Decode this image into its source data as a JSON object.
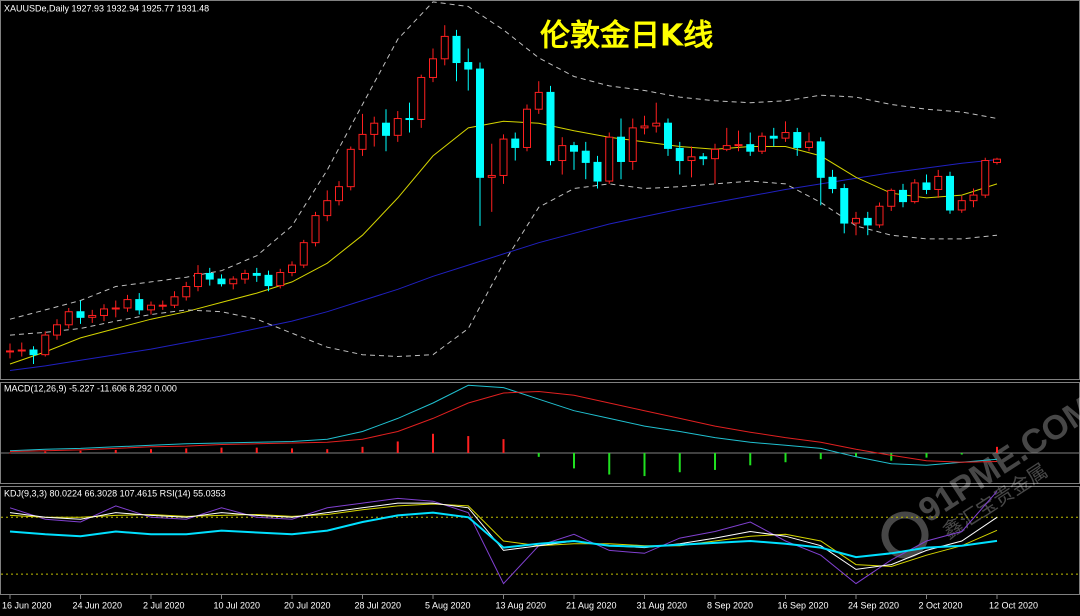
{
  "chart_data": {
    "type": "candlestick",
    "title": "伦敦金日K线",
    "header": "XAUUSDe,Daily  1927.93 1932.94 1925.77 1931.48",
    "up_color": "#ff2020",
    "down_color": "#00ffff",
    "ylim": [
      1697,
      2102
    ],
    "categories": [
      "16 Jun 2020",
      null,
      null,
      null,
      null,
      null,
      "24 Jun 2020",
      null,
      null,
      null,
      null,
      null,
      "2 Jul 2020",
      null,
      null,
      null,
      null,
      null,
      "10 Jul 2020",
      null,
      null,
      null,
      null,
      null,
      "20 Jul 2020",
      null,
      null,
      null,
      null,
      null,
      "28 Jul 2020",
      null,
      null,
      null,
      null,
      null,
      "5 Aug 2020",
      null,
      null,
      null,
      null,
      null,
      "13 Aug 2020",
      null,
      null,
      null,
      null,
      null,
      "21 Aug 2020",
      null,
      null,
      null,
      null,
      null,
      "31 Aug 2020",
      null,
      null,
      null,
      null,
      null,
      "8 Sep 2020",
      null,
      null,
      null,
      null,
      null,
      "16 Sep 2020",
      null,
      null,
      null,
      null,
      null,
      "24 Sep 2020",
      null,
      null,
      null,
      null,
      null,
      "2 Oct 2020",
      null,
      null,
      null,
      null,
      null,
      "12 Oct 2020"
    ],
    "candles": [
      [
        1725,
        1734,
        1718,
        1726
      ],
      [
        1726,
        1735,
        1720,
        1727
      ],
      [
        1727,
        1731,
        1712,
        1722
      ],
      [
        1722,
        1747,
        1720,
        1743
      ],
      [
        1743,
        1760,
        1738,
        1754
      ],
      [
        1754,
        1772,
        1750,
        1768
      ],
      [
        1768,
        1780,
        1755,
        1762
      ],
      [
        1762,
        1770,
        1756,
        1764
      ],
      [
        1764,
        1776,
        1758,
        1771
      ],
      [
        1771,
        1780,
        1762,
        1772
      ],
      [
        1772,
        1786,
        1768,
        1781
      ],
      [
        1781,
        1788,
        1765,
        1770
      ],
      [
        1770,
        1779,
        1765,
        1775
      ],
      [
        1775,
        1780,
        1770,
        1775
      ],
      [
        1775,
        1790,
        1772,
        1784
      ],
      [
        1784,
        1800,
        1780,
        1795
      ],
      [
        1795,
        1818,
        1790,
        1809
      ],
      [
        1809,
        1815,
        1796,
        1803
      ],
      [
        1803,
        1808,
        1795,
        1798
      ],
      [
        1798,
        1806,
        1792,
        1803
      ],
      [
        1803,
        1813,
        1798,
        1809
      ],
      [
        1809,
        1815,
        1800,
        1807
      ],
      [
        1807,
        1812,
        1790,
        1796
      ],
      [
        1796,
        1814,
        1793,
        1810
      ],
      [
        1810,
        1822,
        1806,
        1818
      ],
      [
        1818,
        1845,
        1815,
        1842
      ],
      [
        1842,
        1875,
        1838,
        1871
      ],
      [
        1871,
        1898,
        1865,
        1887
      ],
      [
        1887,
        1908,
        1882,
        1902
      ],
      [
        1902,
        1945,
        1898,
        1942
      ],
      [
        1942,
        1980,
        1935,
        1958
      ],
      [
        1958,
        1977,
        1945,
        1970
      ],
      [
        1970,
        1985,
        1940,
        1957
      ],
      [
        1957,
        1983,
        1950,
        1975
      ],
      [
        1975,
        1992,
        1960,
        1974
      ],
      [
        1974,
        2022,
        1965,
        2019
      ],
      [
        2019,
        2050,
        2014,
        2039
      ],
      [
        2039,
        2075,
        2032,
        2063
      ],
      [
        2063,
        2070,
        2015,
        2035
      ],
      [
        2035,
        2050,
        2005,
        2028
      ],
      [
        2028,
        2035,
        1860,
        1912
      ],
      [
        1912,
        1948,
        1875,
        1914
      ],
      [
        1914,
        1958,
        1905,
        1953
      ],
      [
        1953,
        1960,
        1930,
        1944
      ],
      [
        1944,
        1990,
        1940,
        1985
      ],
      [
        1985,
        2015,
        1980,
        2003
      ],
      [
        2003,
        2010,
        1925,
        1930
      ],
      [
        1930,
        1955,
        1915,
        1946
      ],
      [
        1946,
        1950,
        1920,
        1940
      ],
      [
        1940,
        1950,
        1910,
        1928
      ],
      [
        1928,
        1935,
        1900,
        1908
      ],
      [
        1908,
        1960,
        1905,
        1955
      ],
      [
        1955,
        1975,
        1910,
        1929
      ],
      [
        1929,
        1975,
        1920,
        1965
      ],
      [
        1965,
        1978,
        1958,
        1967
      ],
      [
        1967,
        1992,
        1960,
        1970
      ],
      [
        1970,
        1975,
        1935,
        1943
      ],
      [
        1943,
        1950,
        1915,
        1930
      ],
      [
        1930,
        1945,
        1912,
        1934
      ],
      [
        1934,
        1938,
        1925,
        1932
      ],
      [
        1932,
        1948,
        1905,
        1942
      ],
      [
        1942,
        1965,
        1940,
        1946
      ],
      [
        1946,
        1962,
        1940,
        1947
      ],
      [
        1947,
        1960,
        1935,
        1940
      ],
      [
        1940,
        1960,
        1937,
        1956
      ],
      [
        1956,
        1965,
        1945,
        1954
      ],
      [
        1954,
        1972,
        1950,
        1960
      ],
      [
        1960,
        1965,
        1935,
        1944
      ],
      [
        1944,
        1960,
        1940,
        1950
      ],
      [
        1950,
        1955,
        1882,
        1912
      ],
      [
        1912,
        1920,
        1895,
        1900
      ],
      [
        1900,
        1905,
        1852,
        1863
      ],
      [
        1863,
        1875,
        1850,
        1868
      ],
      [
        1868,
        1875,
        1850,
        1861
      ],
      [
        1861,
        1885,
        1858,
        1881
      ],
      [
        1881,
        1900,
        1876,
        1898
      ],
      [
        1898,
        1905,
        1880,
        1886
      ],
      [
        1886,
        1910,
        1884,
        1906
      ],
      [
        1906,
        1915,
        1894,
        1899
      ],
      [
        1899,
        1920,
        1890,
        1913
      ],
      [
        1913,
        1918,
        1873,
        1877
      ],
      [
        1877,
        1892,
        1874,
        1887
      ],
      [
        1887,
        1900,
        1880,
        1893
      ],
      [
        1893,
        1933,
        1890,
        1930
      ],
      [
        1927.93,
        1932.94,
        1925.77,
        1931.48
      ]
    ],
    "overlays_x": [
      0,
      3,
      6,
      9,
      12,
      15,
      18,
      21,
      24,
      27,
      30,
      33,
      36,
      39,
      42,
      45,
      48,
      51,
      54,
      57,
      60,
      63,
      66,
      69,
      72,
      75,
      78,
      81,
      84
    ],
    "overlays": [
      {
        "color": "#2020c0",
        "style": "solid",
        "values": [
          1705,
          1710,
          1716,
          1722,
          1728,
          1735,
          1742,
          1750,
          1758,
          1768,
          1780,
          1792,
          1806,
          1818,
          1830,
          1842,
          1852,
          1862,
          1870,
          1878,
          1885,
          1892,
          1899,
          1905,
          1911,
          1917,
          1922,
          1927,
          1931
        ]
      },
      {
        "color": "#d4d400",
        "style": "solid",
        "values": [
          1712,
          1725,
          1740,
          1750,
          1760,
          1768,
          1778,
          1788,
          1800,
          1820,
          1850,
          1890,
          1935,
          1965,
          1972,
          1970,
          1962,
          1955,
          1950,
          1945,
          1942,
          1945,
          1945,
          1935,
          1912,
          1895,
          1890,
          1893,
          1905
        ]
      },
      {
        "color": "#c0c0c0",
        "style": "dashed",
        "values": [
          1760,
          1770,
          1780,
          1795,
          1800,
          1805,
          1812,
          1828,
          1860,
          1920,
          1990,
          2060,
          2100,
          2095,
          2070,
          2040,
          2020,
          2010,
          2005,
          1998,
          1994,
          1992,
          1994,
          2000,
          1998,
          1990,
          1985,
          1982,
          1975
        ]
      },
      {
        "color": "#c0c0c0",
        "style": "dashed",
        "values": [
          1743,
          1746,
          1750,
          1758,
          1765,
          1770,
          1768,
          1760,
          1745,
          1730,
          1722,
          1720,
          1722,
          1750,
          1820,
          1880,
          1900,
          1905,
          1900,
          1902,
          1905,
          1908,
          1905,
          1885,
          1860,
          1850,
          1846,
          1846,
          1850
        ]
      }
    ],
    "macd": {
      "header": "MACD(12,26,9) -5.227 -11.606 8.292 0.000",
      "ylim": [
        -39,
        91
      ],
      "x": [
        0,
        3,
        6,
        9,
        12,
        15,
        18,
        21,
        24,
        27,
        30,
        33,
        36,
        39,
        42,
        45,
        48,
        51,
        54,
        57,
        60,
        63,
        66,
        69,
        72,
        75,
        78,
        81,
        84
      ],
      "histogram": [
        0,
        2,
        3,
        4,
        5,
        6,
        7,
        7,
        6,
        5,
        8,
        15,
        25,
        22,
        18,
        -5,
        -20,
        -28,
        -30,
        -25,
        -22,
        -16,
        -12,
        -8,
        -5,
        -10,
        -6,
        -2,
        8
      ],
      "lines": [
        {
          "color": "#20c0d0",
          "values": [
            3,
            5,
            6,
            8,
            10,
            12,
            13,
            14,
            15,
            18,
            28,
            45,
            65,
            88,
            85,
            70,
            55,
            45,
            35,
            28,
            20,
            14,
            10,
            6,
            -5,
            -14,
            -16,
            -12,
            -8
          ]
        },
        {
          "color": "#e02020",
          "values": [
            2,
            3,
            4,
            6,
            8,
            9,
            11,
            12,
            13,
            14,
            18,
            28,
            45,
            65,
            78,
            80,
            75,
            65,
            55,
            45,
            35,
            27,
            20,
            14,
            5,
            -3,
            -10,
            -12,
            -11
          ]
        }
      ]
    },
    "kdj": {
      "header": "KDJ(9,3,3) 80.0224 66.3028 107.4615  RSI(14) 55.0353",
      "ylim": [
        -1,
        112
      ],
      "levels": [
        20,
        80
      ],
      "x": [
        0,
        3,
        6,
        9,
        12,
        15,
        18,
        21,
        24,
        27,
        30,
        33,
        36,
        39,
        42,
        45,
        48,
        51,
        54,
        57,
        60,
        63,
        66,
        69,
        72,
        75,
        78,
        81,
        84
      ],
      "lines": [
        {
          "color": "#8040d0",
          "width": 1,
          "values": [
            90,
            78,
            75,
            92,
            80,
            78,
            90,
            80,
            78,
            90,
            95,
            100,
            97,
            85,
            10,
            50,
            62,
            45,
            42,
            58,
            65,
            75,
            55,
            40,
            10,
            35,
            55,
            65,
            107.4615
          ]
        },
        {
          "color": "#d4d400",
          "width": 1,
          "values": [
            82,
            80,
            80,
            82,
            83,
            81,
            82,
            83,
            81,
            83,
            88,
            92,
            94,
            92,
            55,
            50,
            52,
            52,
            50,
            50,
            55,
            60,
            62,
            55,
            30,
            28,
            40,
            50,
            66.3028
          ]
        },
        {
          "color": "#ffffff",
          "width": 1,
          "values": [
            85,
            80,
            78,
            85,
            82,
            80,
            85,
            82,
            80,
            85,
            90,
            95,
            95,
            90,
            45,
            50,
            55,
            50,
            48,
            52,
            58,
            65,
            60,
            50,
            25,
            30,
            45,
            55,
            80.0224
          ]
        },
        {
          "color": "#00e0ff",
          "width": 2,
          "values": [
            65,
            62,
            60,
            65,
            62,
            62,
            66,
            64,
            62,
            66,
            75,
            82,
            85,
            80,
            48,
            52,
            55,
            50,
            49,
            51,
            53,
            55,
            52,
            48,
            38,
            42,
            48,
            50,
            55.0353
          ]
        }
      ]
    },
    "watermark": {
      "text": "91PME.COM",
      "subtext": "鑫汇宝贵金属"
    }
  }
}
